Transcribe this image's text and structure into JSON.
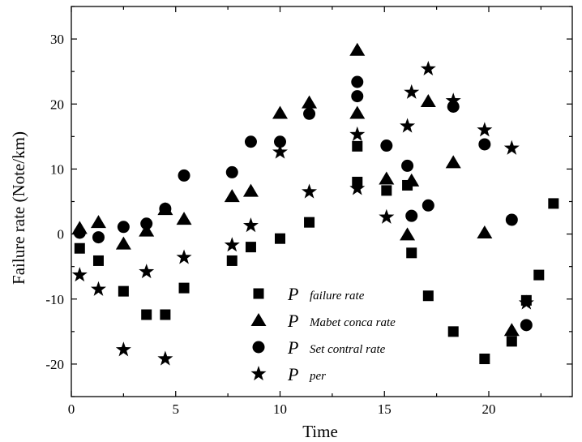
{
  "chart_data": {
    "type": "scatter",
    "title": "",
    "xlabel": "Time",
    "ylabel": "Failure rate (Note/km)",
    "xlim": [
      0,
      24
    ],
    "ylim": [
      -25,
      35
    ],
    "xticks": [
      0,
      5,
      10,
      15,
      20
    ],
    "yticks": [
      -20,
      -10,
      0,
      10,
      20,
      30
    ],
    "grid": false,
    "legend_position": "bottom-center",
    "series": [
      {
        "name": "P failure rate",
        "legend_prefix": "P",
        "legend_text": "failure rate",
        "marker": "square",
        "points": [
          [
            0.4,
            -2.2
          ],
          [
            1.3,
            -4.1
          ],
          [
            2.5,
            -8.8
          ],
          [
            3.6,
            -12.4
          ],
          [
            4.5,
            -12.4
          ],
          [
            5.4,
            -8.3
          ],
          [
            7.7,
            -4.1
          ],
          [
            8.6,
            -2.0
          ],
          [
            10.0,
            -0.7
          ],
          [
            11.4,
            1.8
          ],
          [
            13.7,
            13.5
          ],
          [
            13.7,
            8.0
          ],
          [
            15.1,
            6.7
          ],
          [
            16.1,
            7.5
          ],
          [
            16.3,
            -2.9
          ],
          [
            17.1,
            -9.5
          ],
          [
            18.3,
            -15.0
          ],
          [
            19.8,
            -19.2
          ],
          [
            21.1,
            -16.5
          ],
          [
            21.8,
            -10.2
          ],
          [
            22.4,
            -6.3
          ],
          [
            23.1,
            4.7
          ]
        ]
      },
      {
        "name": "P Mabet conca rate",
        "legend_prefix": "P",
        "legend_text": "Mabet conca rate",
        "marker": "triangle",
        "points": [
          [
            0.4,
            0.9
          ],
          [
            1.3,
            1.8
          ],
          [
            2.5,
            -1.5
          ],
          [
            3.6,
            0.5
          ],
          [
            4.5,
            3.8
          ],
          [
            5.4,
            2.3
          ],
          [
            7.7,
            5.8
          ],
          [
            8.6,
            6.6
          ],
          [
            10.0,
            18.6
          ],
          [
            11.4,
            20.2
          ],
          [
            13.7,
            28.3
          ],
          [
            13.7,
            18.6
          ],
          [
            15.1,
            8.5
          ],
          [
            16.1,
            -0.1
          ],
          [
            16.3,
            8.2
          ],
          [
            17.1,
            20.4
          ],
          [
            18.3,
            11.0
          ],
          [
            19.8,
            0.2
          ],
          [
            21.1,
            -14.8
          ]
        ]
      },
      {
        "name": "P Set contral rate",
        "legend_prefix": "P",
        "legend_text": "Set contral rate",
        "marker": "circle",
        "points": [
          [
            0.4,
            0.2
          ],
          [
            1.3,
            -0.5
          ],
          [
            2.5,
            1.1
          ],
          [
            3.6,
            1.6
          ],
          [
            4.5,
            3.9
          ],
          [
            5.4,
            9.0
          ],
          [
            7.7,
            9.5
          ],
          [
            8.6,
            14.2
          ],
          [
            10.0,
            14.2
          ],
          [
            11.4,
            18.5
          ],
          [
            13.7,
            23.4
          ],
          [
            13.7,
            21.2
          ],
          [
            15.1,
            13.6
          ],
          [
            16.1,
            10.5
          ],
          [
            16.3,
            2.8
          ],
          [
            17.1,
            4.4
          ],
          [
            18.3,
            19.6
          ],
          [
            19.8,
            13.8
          ],
          [
            21.1,
            2.2
          ],
          [
            21.8,
            -14.0
          ]
        ]
      },
      {
        "name": "P per",
        "legend_prefix": "P",
        "legend_text": "per",
        "marker": "star",
        "points": [
          [
            0.4,
            -6.3
          ],
          [
            1.3,
            -8.5
          ],
          [
            2.5,
            -17.8
          ],
          [
            3.6,
            -5.8
          ],
          [
            4.5,
            -19.2
          ],
          [
            5.4,
            -3.6
          ],
          [
            7.7,
            -1.7
          ],
          [
            8.6,
            1.3
          ],
          [
            10.0,
            12.6
          ],
          [
            11.4,
            6.5
          ],
          [
            13.7,
            15.3
          ],
          [
            13.7,
            7.0
          ],
          [
            15.1,
            2.6
          ],
          [
            16.1,
            16.6
          ],
          [
            16.3,
            21.8
          ],
          [
            17.1,
            25.4
          ],
          [
            18.3,
            20.5
          ],
          [
            19.8,
            16.0
          ],
          [
            21.1,
            13.2
          ],
          [
            21.8,
            -10.6
          ]
        ]
      }
    ]
  }
}
